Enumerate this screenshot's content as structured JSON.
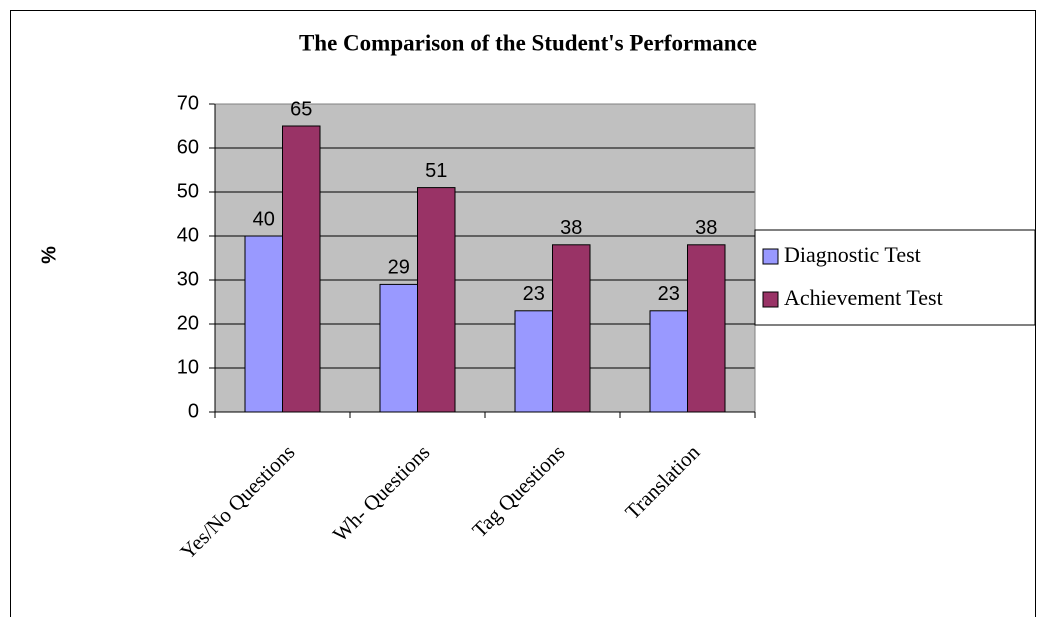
{
  "chart_data": {
    "type": "bar",
    "title": "The Comparison of the Student's Performance",
    "y_label": "%",
    "categories": [
      "Yes/No Questions",
      "Wh- Questions",
      "Tag Questions",
      "Translation"
    ],
    "series": [
      {
        "name": "Diagnostic Test",
        "color": "#9999ff",
        "values": [
          40,
          29,
          23,
          23
        ]
      },
      {
        "name": "Achievement Test",
        "color": "#993366",
        "values": [
          65,
          51,
          38,
          38
        ]
      }
    ],
    "ylim": [
      0,
      70
    ],
    "yticks": [
      0,
      10,
      20,
      30,
      40,
      50,
      60,
      70
    ],
    "grid": true,
    "legend": "right"
  }
}
